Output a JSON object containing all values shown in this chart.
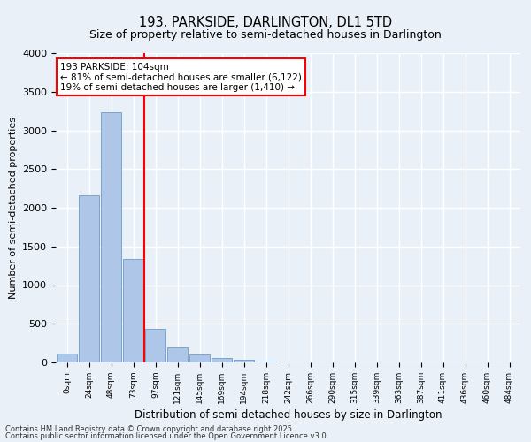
{
  "title1": "193, PARKSIDE, DARLINGTON, DL1 5TD",
  "title2": "Size of property relative to semi-detached houses in Darlington",
  "xlabel": "Distribution of semi-detached houses by size in Darlington",
  "ylabel": "Number of semi-detached properties",
  "annotation_line1": "193 PARKSIDE: 104sqm",
  "annotation_line2": "← 81% of semi-detached houses are smaller (6,122)",
  "annotation_line3": "19% of semi-detached houses are larger (1,410) →",
  "footer1": "Contains HM Land Registry data © Crown copyright and database right 2025.",
  "footer2": "Contains public sector information licensed under the Open Government Licence v3.0.",
  "bar_labels": [
    "0sqm",
    "24sqm",
    "48sqm",
    "73sqm",
    "97sqm",
    "121sqm",
    "145sqm",
    "169sqm",
    "194sqm",
    "218sqm",
    "242sqm",
    "266sqm",
    "290sqm",
    "315sqm",
    "339sqm",
    "363sqm",
    "387sqm",
    "411sqm",
    "436sqm",
    "460sqm",
    "484sqm"
  ],
  "bar_values": [
    120,
    2160,
    3230,
    1340,
    430,
    195,
    100,
    60,
    30,
    10,
    5,
    2,
    1,
    0,
    0,
    0,
    0,
    0,
    0,
    0,
    0
  ],
  "bar_color": "#aec6e8",
  "bar_edge_color": "#5a8fc0",
  "vline_x": 4,
  "vline_color": "red",
  "ylim": [
    0,
    4000
  ],
  "yticks": [
    0,
    500,
    1000,
    1500,
    2000,
    2500,
    3000,
    3500,
    4000
  ],
  "bg_color": "#eaf0f8",
  "plot_bg": "#eaf0f8",
  "grid_color": "white",
  "annotation_box_color": "white",
  "annotation_border_color": "red"
}
